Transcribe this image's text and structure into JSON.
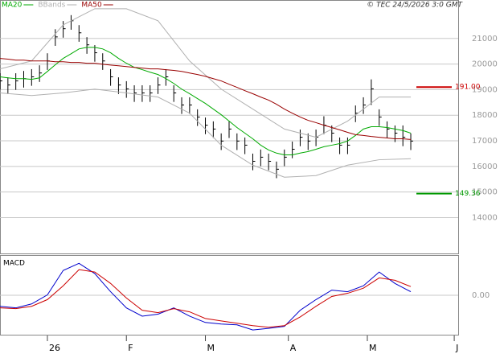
{
  "chart_data": [
    {
      "type": "ohlc",
      "copyright": "© TEC 24/5/2026 3:0 GMT",
      "x": [
        -12,
        -10,
        -8,
        -6,
        -4,
        -2,
        0,
        2,
        4,
        6,
        8,
        10,
        12,
        14,
        16,
        18,
        20,
        22,
        24,
        26,
        28,
        30,
        32,
        34,
        36,
        38,
        40,
        42,
        44,
        46,
        48,
        50,
        52,
        54,
        56,
        58,
        60,
        62,
        64,
        66,
        68,
        70,
        72,
        74,
        76,
        78,
        80,
        82,
        84,
        86,
        88,
        90,
        92
      ],
      "high": [
        19640,
        19480,
        19640,
        19730,
        19800,
        19950,
        20420,
        21360,
        21680,
        21910,
        21520,
        21050,
        20740,
        20420,
        19800,
        19480,
        19330,
        19170,
        19170,
        19170,
        19480,
        19800,
        19170,
        18700,
        18700,
        18230,
        17910,
        17760,
        17290,
        17760,
        17290,
        17130,
        16500,
        16660,
        16500,
        16190,
        16660,
        16970,
        17440,
        17290,
        17440,
        17960,
        17600,
        17130,
        17130,
        18380,
        18700,
        19400,
        18230,
        17760,
        17600,
        17600,
        17290
      ],
      "low": [
        18990,
        18830,
        18990,
        19080,
        19150,
        19300,
        19770,
        20710,
        21030,
        21340,
        20870,
        20400,
        20090,
        19770,
        19150,
        18830,
        18680,
        18520,
        18520,
        18520,
        18830,
        19150,
        18520,
        18050,
        18050,
        17580,
        17260,
        17110,
        16640,
        17110,
        16640,
        16480,
        15850,
        16010,
        15850,
        15540,
        16010,
        16320,
        16790,
        16640,
        16790,
        17260,
        16950,
        16480,
        16480,
        17730,
        18050,
        18400,
        17580,
        17110,
        16950,
        16790,
        16640
      ],
      "close": [
        19340,
        19180,
        19340,
        19430,
        19500,
        19650,
        20120,
        21060,
        21380,
        21690,
        21220,
        20750,
        20440,
        20120,
        19500,
        19180,
        19030,
        18870,
        18870,
        18870,
        19180,
        19500,
        18870,
        18400,
        18400,
        17930,
        17610,
        17460,
        16990,
        17460,
        16990,
        16830,
        16200,
        16360,
        16200,
        15890,
        16360,
        16670,
        17140,
        16990,
        17140,
        17610,
        17300,
        16830,
        16830,
        18080,
        18400,
        19030,
        17930,
        17460,
        17300,
        17140,
        16990
      ],
      "bar_color": "#000000",
      "series": [
        {
          "name": "MA20",
          "color": "#00aa00",
          "values": [
            19500,
            19460,
            19430,
            19430,
            19400,
            19460,
            19710,
            19970,
            20220,
            20400,
            20590,
            20650,
            20650,
            20590,
            20440,
            20220,
            20030,
            19870,
            19780,
            19680,
            19590,
            19430,
            19240,
            19020,
            18840,
            18650,
            18460,
            18240,
            18020,
            17770,
            17520,
            17300,
            17080,
            16830,
            16640,
            16520,
            16450,
            16450,
            16520,
            16580,
            16670,
            16770,
            16830,
            16890,
            16990,
            17210,
            17460,
            17550,
            17550,
            17520,
            17460,
            17400,
            17300
          ]
        },
        {
          "name": "MA50",
          "color": "#990000",
          "values": [
            20220,
            20190,
            20150,
            20150,
            20120,
            20120,
            20120,
            20090,
            20090,
            20060,
            20060,
            20030,
            20030,
            19990,
            19960,
            19930,
            19900,
            19870,
            19840,
            19810,
            19810,
            19780,
            19750,
            19710,
            19650,
            19590,
            19520,
            19430,
            19340,
            19210,
            19090,
            18960,
            18840,
            18710,
            18590,
            18430,
            18240,
            18080,
            17930,
            17800,
            17710,
            17610,
            17520,
            17430,
            17330,
            17240,
            17210,
            17170,
            17140,
            17110,
            17080,
            17080,
            17050
          ]
        }
      ],
      "bands": {
        "name": "BBands",
        "color": "#b0b0b0",
        "x": [
          -12,
          -4,
          4,
          12,
          20,
          28,
          36,
          44,
          52,
          60,
          68,
          76,
          84,
          92
        ],
        "upper": [
          19810,
          20120,
          21530,
          22160,
          22160,
          21690,
          20120,
          19020,
          18240,
          17460,
          17140,
          17770,
          18710,
          18710
        ],
        "lower": [
          18870,
          18770,
          18870,
          19020,
          18870,
          18710,
          18080,
          16830,
          16050,
          15580,
          15640,
          16050,
          16260,
          16300
        ]
      },
      "levels": [
        {
          "value": 19100,
          "label": "191.00",
          "color": "#cc0000"
        },
        {
          "value": 14936,
          "label": "149.36",
          "color": "#009900"
        }
      ],
      "xlim": [
        -12,
        104
      ],
      "ylim": [
        12600,
        22470
      ],
      "yticks": [
        14000,
        15000,
        16000,
        17000,
        18000,
        19000,
        20000,
        21000
      ],
      "grid": true
    },
    {
      "type": "line",
      "title": "MACD",
      "x": [
        -12,
        -8,
        -4,
        0,
        4,
        8,
        12,
        16,
        20,
        24,
        28,
        32,
        36,
        40,
        44,
        48,
        52,
        56,
        60,
        64,
        68,
        72,
        76,
        80,
        84,
        88,
        92
      ],
      "series": [
        {
          "color": "#0000cc",
          "values": [
            -0.28,
            -0.32,
            -0.22,
            0.01,
            0.63,
            0.81,
            0.55,
            0.09,
            -0.32,
            -0.53,
            -0.48,
            -0.32,
            -0.53,
            -0.69,
            -0.73,
            -0.75,
            -0.88,
            -0.84,
            -0.79,
            -0.38,
            -0.11,
            0.13,
            0.09,
            0.24,
            0.59,
            0.3,
            0.09
          ]
        },
        {
          "color": "#cc0000",
          "values": [
            -0.32,
            -0.34,
            -0.28,
            -0.11,
            0.24,
            0.65,
            0.59,
            0.3,
            -0.07,
            -0.38,
            -0.44,
            -0.34,
            -0.42,
            -0.59,
            -0.65,
            -0.71,
            -0.77,
            -0.81,
            -0.77,
            -0.55,
            -0.28,
            -0.03,
            0.05,
            0.18,
            0.44,
            0.38,
            0.22
          ]
        }
      ],
      "xlim": [
        -12,
        104
      ],
      "xticks": [
        {
          "value": 0,
          "label": "26"
        },
        {
          "value": 20,
          "label": "F"
        },
        {
          "value": 40,
          "label": "M"
        },
        {
          "value": 61,
          "label": "A"
        },
        {
          "value": 81,
          "label": "M"
        },
        {
          "value": 103,
          "label": "J"
        }
      ],
      "ylim": [
        -1,
        1
      ],
      "yticks": [
        {
          "value": 0,
          "label": "0.00"
        }
      ],
      "grid": true
    }
  ]
}
